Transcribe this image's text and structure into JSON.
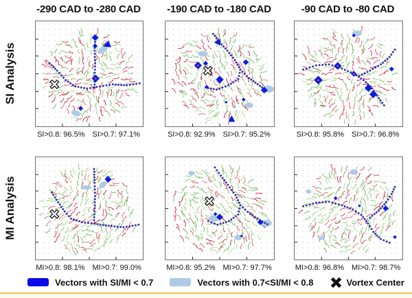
{
  "legend": {
    "items": [
      {
        "icon": "blue-swatch",
        "label": "Vectors with SI/MI < 0.7"
      },
      {
        "icon": "lightblue-swatch",
        "label": "Vectors with 0.7<SI/MI < 0.8"
      },
      {
        "icon": "vortex-center-marker",
        "label": "Vortex Center"
      }
    ]
  },
  "colors": {
    "marker_blue": "#0d1ce0",
    "legend_blue": "#0a0ae6",
    "light_blue": "#aecae6",
    "curve_indigo": "#3535a5",
    "diamond_center_dot": "#e06a35",
    "underline_yellow": "#f3bf45",
    "red_shades": [
      "#d94f63",
      "#c43a52",
      "#e2707f"
    ],
    "green_shades": [
      "#93c97f",
      "#7fbb6e",
      "#aed79b"
    ]
  },
  "chart_data": {
    "type": "vector-field-grid",
    "columns": [
      "-290 CAD to -280 CAD",
      "-190 CAD to -180 CAD",
      "-90 CAD to -80 CAD"
    ],
    "rows": [
      "SI Analysis",
      "MI Analysis"
    ],
    "legend_note": "Dotted indigo curves mark flow separatrices; blue diamonds mark low SI/MI vectors; light-blue patches mark 0.7<SI/MI<0.8 vectors; X marks vortex centers",
    "panels": [
      {
        "id": "si-290",
        "row": "SI Analysis",
        "column": "-290 CAD to -280 CAD",
        "stats": [
          "SI>0.8: 96.5%",
          "SI>0.7: 97.1%"
        ],
        "seed": 11,
        "red_ratio": 0.46,
        "curves": [
          [
            [
              0.13,
              0.4
            ],
            [
              0.2,
              0.47
            ],
            [
              0.28,
              0.56
            ],
            [
              0.37,
              0.62
            ],
            [
              0.48,
              0.64
            ],
            [
              0.6,
              0.62
            ],
            [
              0.72,
              0.6
            ],
            [
              0.85,
              0.61
            ],
            [
              0.97,
              0.59
            ]
          ],
          [
            [
              0.555,
              0.17
            ],
            [
              0.55,
              0.28
            ],
            [
              0.555,
              0.4
            ],
            [
              0.55,
              0.52
            ],
            [
              0.55,
              0.63
            ]
          ]
        ],
        "diamonds": [
          [
            0.555,
            0.155,
            7,
            0
          ],
          [
            0.555,
            0.235,
            5,
            0
          ],
          [
            0.56,
            0.545,
            8,
            1
          ],
          [
            0.42,
            0.83,
            5,
            0
          ]
        ],
        "triangles": [
          [
            0.665,
            0.225,
            10,
            -110
          ]
        ],
        "patches": [
          [
            0.625,
            0.275,
            8,
            4,
            -30
          ],
          [
            0.375,
            0.875,
            7,
            4,
            20
          ]
        ],
        "vortex_centers": [
          [
            0.175,
            0.6
          ]
        ],
        "swirls": [
          [
            0.32,
            0.38,
            1
          ],
          [
            0.7,
            0.35,
            -1
          ],
          [
            0.42,
            0.78,
            -1
          ],
          [
            0.78,
            0.7,
            1
          ]
        ]
      },
      {
        "id": "si-190",
        "row": "SI Analysis",
        "column": "-190 CAD to -180 CAD",
        "stats": [
          "SI>0.8: 92.9%",
          "SI>0.7: 95.2%"
        ],
        "seed": 22,
        "red_ratio": 0.46,
        "curves": [
          [
            [
              0.44,
              0.12
            ],
            [
              0.5,
              0.2
            ],
            [
              0.57,
              0.28
            ],
            [
              0.64,
              0.37
            ],
            [
              0.69,
              0.46
            ],
            [
              0.67,
              0.55
            ],
            [
              0.58,
              0.61
            ],
            [
              0.47,
              0.65
            ],
            [
              0.37,
              0.63
            ]
          ],
          [
            [
              0.69,
              0.46
            ],
            [
              0.77,
              0.54
            ],
            [
              0.85,
              0.6
            ],
            [
              0.93,
              0.66
            ]
          ]
        ],
        "diamonds": [
          [
            0.3,
            0.42,
            8,
            1
          ],
          [
            0.37,
            0.4,
            5,
            0
          ],
          [
            0.74,
            0.39,
            6,
            0
          ],
          [
            0.5,
            0.555,
            8,
            0
          ],
          [
            0.38,
            0.625,
            4,
            0
          ],
          [
            0.91,
            0.655,
            7,
            0
          ],
          [
            0.72,
            0.745,
            4,
            0
          ],
          [
            0.56,
            0.77,
            3,
            0
          ]
        ],
        "triangles": [
          [
            0.48,
            0.2,
            9,
            -90
          ],
          [
            0.61,
            0.93,
            9,
            0
          ]
        ],
        "patches": [
          [
            0.345,
            0.31,
            7,
            4,
            0
          ],
          [
            0.95,
            0.645,
            8,
            5,
            0
          ],
          [
            0.77,
            0.8,
            6,
            4,
            0
          ]
        ],
        "vortex_centers": [
          [
            0.39,
            0.47
          ]
        ],
        "swirls": [
          [
            0.28,
            0.38,
            1
          ],
          [
            0.7,
            0.28,
            -1
          ],
          [
            0.5,
            0.75,
            1
          ],
          [
            0.88,
            0.6,
            -1
          ]
        ]
      },
      {
        "id": "si-90",
        "row": "SI Analysis",
        "column": "-90 CAD to -80 CAD",
        "stats": [
          "SI>0.8: 95.8%",
          "SI>0.7: 96.8%"
        ],
        "seed": 33,
        "red_ratio": 0.46,
        "curves": [
          [
            [
              0.08,
              0.46
            ],
            [
              0.2,
              0.42
            ],
            [
              0.32,
              0.41
            ],
            [
              0.44,
              0.45
            ],
            [
              0.55,
              0.5
            ],
            [
              0.64,
              0.56
            ],
            [
              0.72,
              0.64
            ],
            [
              0.78,
              0.73
            ],
            [
              0.83,
              0.8
            ]
          ],
          [
            [
              0.6,
              0.52
            ],
            [
              0.7,
              0.47
            ],
            [
              0.8,
              0.41
            ],
            [
              0.88,
              0.34
            ],
            [
              0.93,
              0.27
            ]
          ]
        ],
        "diamonds": [
          [
            0.4,
            0.425,
            8,
            1
          ],
          [
            0.22,
            0.56,
            9,
            1
          ],
          [
            0.55,
            0.5,
            6,
            1
          ],
          [
            0.685,
            0.635,
            8,
            0
          ],
          [
            0.73,
            0.695,
            8,
            0
          ],
          [
            0.9,
            0.455,
            5,
            0
          ],
          [
            0.55,
            0.135,
            4,
            0
          ]
        ],
        "triangles": [],
        "patches": [
          [
            0.58,
            0.115,
            7,
            4,
            0
          ]
        ],
        "vortex_centers": [],
        "swirls": [
          [
            0.33,
            0.3,
            -1
          ],
          [
            0.72,
            0.32,
            1
          ],
          [
            0.33,
            0.72,
            1
          ],
          [
            0.72,
            0.75,
            -1
          ]
        ]
      },
      {
        "id": "mi-290",
        "row": "MI Analysis",
        "column": "-290 CAD to -280 CAD",
        "stats": [
          "MI>0.8: 98.1%",
          "MI>0.7: 99.0%"
        ],
        "seed": 44,
        "red_ratio": 0.34,
        "curves": [
          [
            [
              0.15,
              0.345
            ],
            [
              0.21,
              0.44
            ],
            [
              0.27,
              0.53
            ],
            [
              0.33,
              0.6
            ],
            [
              0.43,
              0.635
            ],
            [
              0.55,
              0.65
            ],
            [
              0.68,
              0.67
            ],
            [
              0.82,
              0.685
            ],
            [
              0.96,
              0.66
            ]
          ],
          [
            [
              0.545,
              0.115
            ],
            [
              0.55,
              0.25
            ],
            [
              0.555,
              0.38
            ],
            [
              0.55,
              0.5
            ],
            [
              0.545,
              0.615
            ]
          ]
        ],
        "diamonds": [
          [
            0.675,
            0.215,
            7,
            0
          ]
        ],
        "triangles": [],
        "patches": [
          [
            0.47,
            0.295,
            8,
            3,
            0
          ],
          [
            0.625,
            0.27,
            6,
            4,
            -40
          ]
        ],
        "vortex_centers": [
          [
            0.175,
            0.555
          ]
        ],
        "swirls": [
          [
            0.32,
            0.38,
            1
          ],
          [
            0.7,
            0.35,
            -1
          ],
          [
            0.45,
            0.78,
            -1
          ]
        ]
      },
      {
        "id": "mi-190",
        "row": "MI Analysis",
        "column": "-190 CAD to -180 CAD",
        "stats": [
          "MI>0.8: 95.2%",
          "MI>0.7: 97.7%"
        ],
        "seed": 55,
        "red_ratio": 0.36,
        "curves": [
          [
            [
              0.455,
              0.1
            ],
            [
              0.51,
              0.18
            ],
            [
              0.575,
              0.27
            ],
            [
              0.645,
              0.37
            ],
            [
              0.69,
              0.47
            ],
            [
              0.67,
              0.56
            ],
            [
              0.585,
              0.625
            ],
            [
              0.48,
              0.66
            ],
            [
              0.395,
              0.625
            ]
          ],
          [
            [
              0.69,
              0.47
            ],
            [
              0.78,
              0.555
            ],
            [
              0.87,
              0.615
            ],
            [
              0.94,
              0.655
            ]
          ]
        ],
        "diamonds": [
          [
            0.5,
            0.585,
            7,
            0
          ],
          [
            0.46,
            0.555,
            4,
            0
          ],
          [
            0.875,
            0.635,
            6,
            0
          ],
          [
            0.7,
            0.77,
            3,
            0
          ]
        ],
        "triangles": [],
        "patches": [
          [
            0.445,
            0.6,
            7,
            5,
            0
          ],
          [
            0.93,
            0.645,
            8,
            5,
            0
          ],
          [
            0.67,
            0.785,
            5,
            4,
            0
          ],
          [
            0.24,
            0.155,
            5,
            3,
            0
          ]
        ],
        "vortex_centers": [
          [
            0.405,
            0.43
          ]
        ],
        "swirls": [
          [
            0.28,
            0.38,
            1
          ],
          [
            0.7,
            0.28,
            -1
          ],
          [
            0.5,
            0.75,
            1
          ]
        ]
      },
      {
        "id": "mi-90",
        "row": "MI Analysis",
        "column": "-90 CAD to -80 CAD",
        "stats": [
          "MI>0.8: 96.8%",
          "MI>0.7: 98.7%"
        ],
        "seed": 66,
        "red_ratio": 0.34,
        "curves": [
          [
            [
              0.08,
              0.48
            ],
            [
              0.2,
              0.445
            ],
            [
              0.32,
              0.435
            ],
            [
              0.44,
              0.47
            ],
            [
              0.54,
              0.51
            ],
            [
              0.62,
              0.565
            ],
            [
              0.68,
              0.645
            ],
            [
              0.73,
              0.73
            ],
            [
              0.8,
              0.8
            ],
            [
              0.88,
              0.835
            ]
          ],
          [
            [
              0.7,
              0.59
            ],
            [
              0.78,
              0.52
            ],
            [
              0.85,
              0.44
            ],
            [
              0.9,
              0.36
            ],
            [
              0.93,
              0.29
            ]
          ]
        ],
        "diamonds": [
          [
            0.38,
            0.4,
            4,
            0
          ],
          [
            0.6,
            0.475,
            3,
            0
          ],
          [
            0.845,
            0.5,
            6,
            0
          ],
          [
            0.93,
            0.78,
            4,
            0
          ]
        ],
        "triangles": [],
        "patches": [
          [
            0.55,
            0.145,
            6,
            4,
            0
          ],
          [
            0.25,
            0.79,
            5,
            3,
            0
          ],
          [
            0.13,
            0.335,
            4,
            3,
            0
          ]
        ],
        "vortex_centers": [],
        "swirls": [
          [
            0.33,
            0.3,
            -1
          ],
          [
            0.72,
            0.32,
            1
          ],
          [
            0.4,
            0.75,
            1
          ]
        ]
      }
    ]
  }
}
